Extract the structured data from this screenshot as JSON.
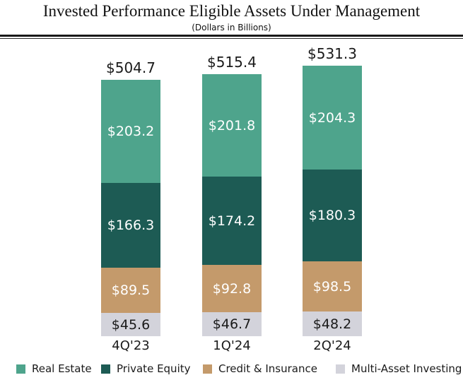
{
  "header": {
    "title": "Invested Performance Eligible Assets Under Management",
    "subtitle": "(Dollars in Billions)"
  },
  "chart_data": {
    "type": "bar",
    "stacked": true,
    "title": "Invested Performance Eligible Assets Under Management",
    "subtitle": "(Dollars in Billions)",
    "value_prefix": "$",
    "categories": [
      "4Q'23",
      "1Q'24",
      "2Q'24"
    ],
    "totals": [
      504.7,
      515.4,
      531.3
    ],
    "series": [
      {
        "name": "Real Estate",
        "color": "#4EA48C",
        "label_color": "#FFFFFF",
        "values": [
          203.2,
          201.8,
          204.3
        ]
      },
      {
        "name": "Private Equity",
        "color": "#1D5B54",
        "label_color": "#FFFFFF",
        "values": [
          166.3,
          174.2,
          180.3
        ]
      },
      {
        "name": "Credit & Insurance",
        "color": "#C49A6B",
        "label_color": "#FFFFFF",
        "values": [
          89.5,
          92.8,
          98.5
        ]
      },
      {
        "name": "Multi-Asset Investing",
        "color": "#D3D3DB",
        "label_color": "#1A1A1A",
        "values": [
          45.6,
          46.7,
          48.2
        ]
      }
    ],
    "series_order_note": "listed top-to-bottom of stack",
    "legend_position": "bottom",
    "grid": false,
    "axes_visible": false,
    "ylim": [
      0,
      540
    ]
  }
}
